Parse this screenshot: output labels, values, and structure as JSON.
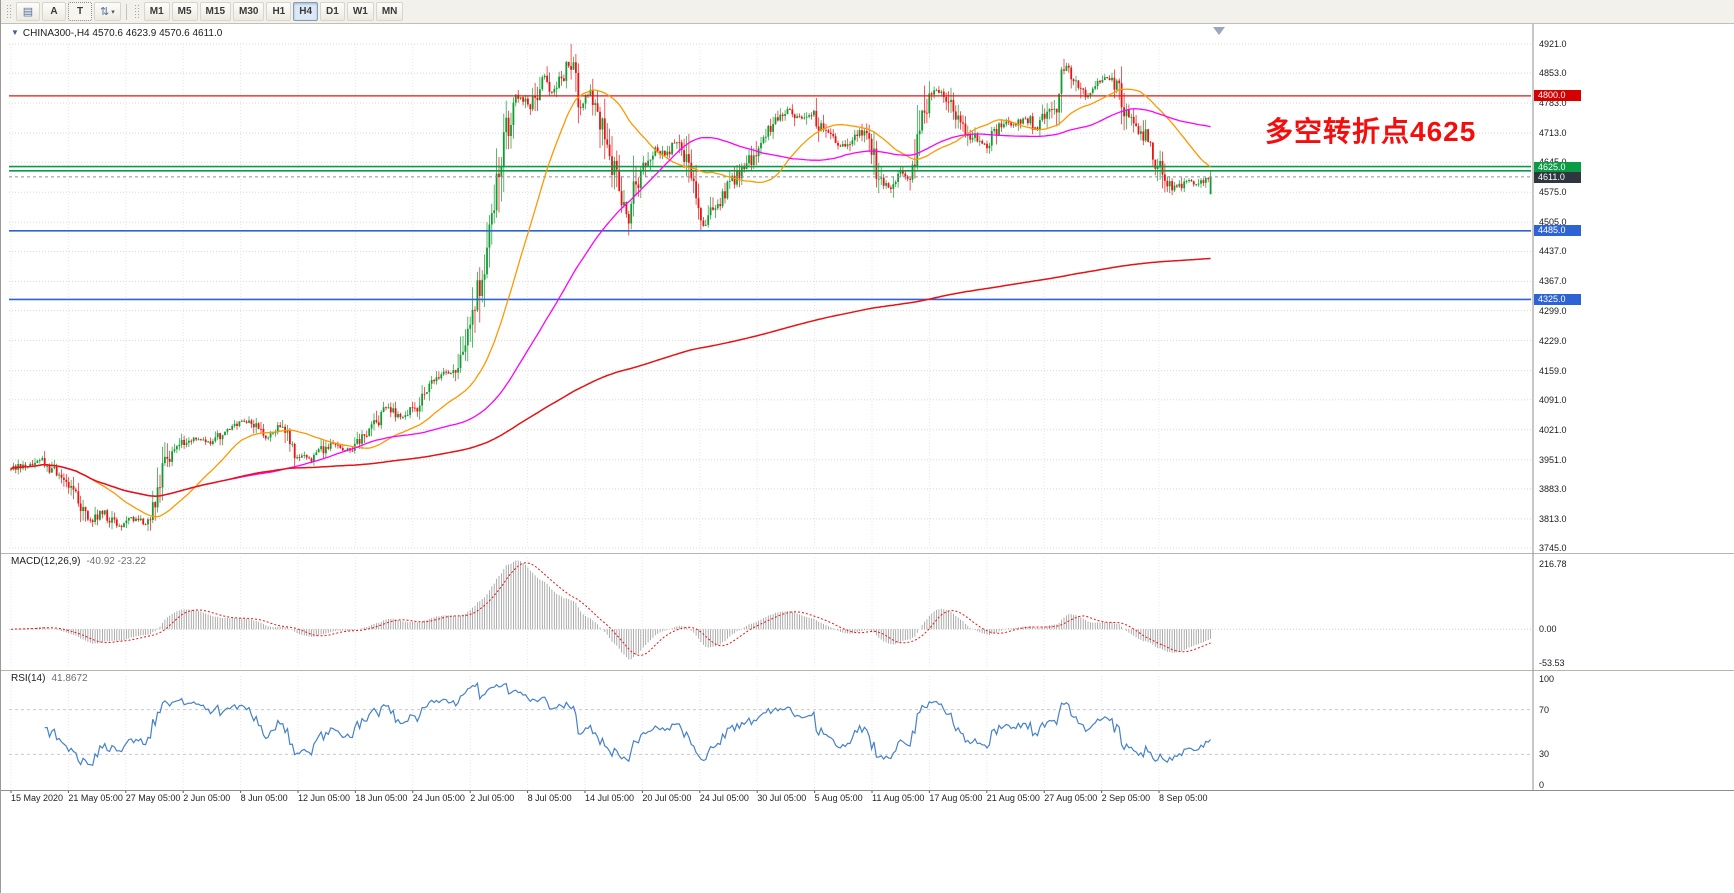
{
  "toolbar": {
    "tools": [
      {
        "name": "charts-grid",
        "glyph": "▤"
      },
      {
        "name": "text-label",
        "glyph": "A"
      },
      {
        "name": "text-box",
        "glyph": "T"
      },
      {
        "name": "scale-arrows",
        "glyph": "⇅"
      },
      {
        "name": "dropdown-caret",
        "glyph": "▾"
      }
    ],
    "timeframes": [
      "M1",
      "M5",
      "M15",
      "M30",
      "H1",
      "H4",
      "D1",
      "W1",
      "MN"
    ],
    "active_timeframe": "H4"
  },
  "chart": {
    "collapse_glyph": "▼",
    "symbol_ohlc": "CHINA300-,H4  4570.6 4623.9 4570.6 4611.0",
    "annotation": "多空转折点4625",
    "annotation_color": "#f50d0d",
    "price_scale": [
      "4921.0",
      "4853.0",
      "4783.0",
      "4713.0",
      "4645.0",
      "4575.0",
      "4505.0",
      "4437.0",
      "4367.0",
      "4299.0",
      "4229.0",
      "4159.0",
      "4091.0",
      "4021.0",
      "3951.0",
      "3883.0",
      "3813.0",
      "3745.0"
    ],
    "time_scale": [
      "15 May 2020",
      "21 May 05:00",
      "27 May 05:00",
      "2 Jun 05:00",
      "8 Jun 05:00",
      "12 Jun 05:00",
      "18 Jun 05:00",
      "24 Jun 05:00",
      "2 Jul 05:00",
      "8 Jul 05:00",
      "14 Jul 05:00",
      "20 Jul 05:00",
      "24 Jul 05:00",
      "30 Jul 05:00",
      "5 Aug 05:00",
      "11 Aug 05:00",
      "17 Aug 05:00",
      "21 Aug 05:00",
      "27 Aug 05:00",
      "2 Sep 05:00",
      "8 Sep 05:00"
    ],
    "levels": [
      {
        "value": 4800.0,
        "label": "4800.0",
        "color": "#e81212",
        "width": 1.2
      },
      {
        "value": 4635.0,
        "label": "",
        "color": "#0a9b44",
        "width": 1.6
      },
      {
        "value": 4625.0,
        "label": "4625.0",
        "color": "#0a9b44",
        "width": 1.6
      },
      {
        "value": 4485.0,
        "label": "4485.0",
        "color": "#2e63d6",
        "width": 1.6
      },
      {
        "value": 4325.0,
        "label": "4325.0",
        "color": "#2e63d6",
        "width": 1.6
      }
    ],
    "last_price": {
      "value": 4611.0,
      "label": "4611.0"
    }
  },
  "indicators": {
    "macd": {
      "label": "MACD(12,26,9)",
      "values": "-40.92 -23.22",
      "scale": [
        "216.78",
        "0.00",
        "-53.53"
      ],
      "params": [
        12,
        26,
        9
      ]
    },
    "rsi": {
      "label": "RSI(14)",
      "value": "41.8672",
      "scale": [
        "100",
        "70",
        "30",
        "0"
      ],
      "levels": [
        70,
        30
      ],
      "period": 14
    }
  },
  "chart_data": {
    "type": "candlestick",
    "symbol": "CHINA300-",
    "timeframe": "H4",
    "y_range": [
      3745,
      4921
    ],
    "bars": 500,
    "last_candle": {
      "open": 4570.6,
      "high": 4623.9,
      "low": 4570.6,
      "close": 4611.0
    },
    "spike_high": {
      "frac": 0.467,
      "price": 4921.0
    },
    "price_path": [
      [
        0,
        3930
      ],
      [
        0.025,
        3952
      ],
      [
        0.05,
        3885
      ],
      [
        0.065,
        3805
      ],
      [
        0.075,
        3830
      ],
      [
        0.09,
        3795
      ],
      [
        0.1,
        3812
      ],
      [
        0.112,
        3808
      ],
      [
        0.121,
        3865
      ],
      [
        0.129,
        3950
      ],
      [
        0.138,
        3980
      ],
      [
        0.15,
        4000
      ],
      [
        0.167,
        3992
      ],
      [
        0.183,
        4030
      ],
      [
        0.2,
        4042
      ],
      [
        0.212,
        4000
      ],
      [
        0.225,
        4030
      ],
      [
        0.238,
        3962
      ],
      [
        0.25,
        3952
      ],
      [
        0.267,
        3990
      ],
      [
        0.283,
        3972
      ],
      [
        0.3,
        4022
      ],
      [
        0.312,
        4078
      ],
      [
        0.325,
        4052
      ],
      [
        0.338,
        4072
      ],
      [
        0.35,
        4118
      ],
      [
        0.362,
        4158
      ],
      [
        0.37,
        4152
      ],
      [
        0.379,
        4230
      ],
      [
        0.388,
        4340
      ],
      [
        0.396,
        4440
      ],
      [
        0.404,
        4560
      ],
      [
        0.412,
        4700
      ],
      [
        0.421,
        4780
      ],
      [
        0.425,
        4800
      ],
      [
        0.433,
        4772
      ],
      [
        0.442,
        4832
      ],
      [
        0.446,
        4850
      ],
      [
        0.45,
        4800
      ],
      [
        0.458,
        4840
      ],
      [
        0.467,
        4878
      ],
      [
        0.471,
        4820
      ],
      [
        0.475,
        4782
      ],
      [
        0.483,
        4802
      ],
      [
        0.492,
        4730
      ],
      [
        0.5,
        4650
      ],
      [
        0.508,
        4552
      ],
      [
        0.515,
        4512
      ],
      [
        0.521,
        4600
      ],
      [
        0.529,
        4640
      ],
      [
        0.537,
        4680
      ],
      [
        0.546,
        4662
      ],
      [
        0.554,
        4690
      ],
      [
        0.562,
        4650
      ],
      [
        0.571,
        4560
      ],
      [
        0.577,
        4488
      ],
      [
        0.583,
        4522
      ],
      [
        0.592,
        4552
      ],
      [
        0.6,
        4600
      ],
      [
        0.608,
        4622
      ],
      [
        0.617,
        4652
      ],
      [
        0.625,
        4700
      ],
      [
        0.633,
        4722
      ],
      [
        0.642,
        4750
      ],
      [
        0.65,
        4770
      ],
      [
        0.658,
        4742
      ],
      [
        0.667,
        4762
      ],
      [
        0.675,
        4722
      ],
      [
        0.683,
        4700
      ],
      [
        0.692,
        4682
      ],
      [
        0.7,
        4700
      ],
      [
        0.708,
        4722
      ],
      [
        0.717,
        4682
      ],
      [
        0.725,
        4600
      ],
      [
        0.733,
        4582
      ],
      [
        0.742,
        4622
      ],
      [
        0.75,
        4602
      ],
      [
        0.758,
        4700
      ],
      [
        0.763,
        4790
      ],
      [
        0.771,
        4812
      ],
      [
        0.779,
        4800
      ],
      [
        0.787,
        4762
      ],
      [
        0.796,
        4722
      ],
      [
        0.804,
        4700
      ],
      [
        0.813,
        4682
      ],
      [
        0.821,
        4722
      ],
      [
        0.829,
        4742
      ],
      [
        0.838,
        4730
      ],
      [
        0.846,
        4752
      ],
      [
        0.854,
        4722
      ],
      [
        0.862,
        4752
      ],
      [
        0.871,
        4782
      ],
      [
        0.879,
        4868
      ],
      [
        0.887,
        4842
      ],
      [
        0.896,
        4802
      ],
      [
        0.904,
        4822
      ],
      [
        0.912,
        4842
      ],
      [
        0.921,
        4830
      ],
      [
        0.929,
        4762
      ],
      [
        0.937,
        4732
      ],
      [
        0.946,
        4700
      ],
      [
        0.954,
        4652
      ],
      [
        0.962,
        4602
      ],
      [
        0.971,
        4582
      ],
      [
        0.979,
        4600
      ],
      [
        0.987,
        4590
      ],
      [
        1,
        4605
      ]
    ],
    "moving_averages": [
      {
        "name": "fast",
        "window": 34,
        "color": "#ff9800"
      },
      {
        "name": "mid",
        "window": 90,
        "color": "#ff00ff"
      },
      {
        "name": "slow",
        "window": 500,
        "color": "#e81212"
      }
    ],
    "colors": {
      "up": "#119c30",
      "down": "#ee1111",
      "grid": "#d8d8d8",
      "macd_hist": "#9a9a9a",
      "macd_signal": "#ee1111",
      "rsi_line": "#4581c9"
    }
  }
}
